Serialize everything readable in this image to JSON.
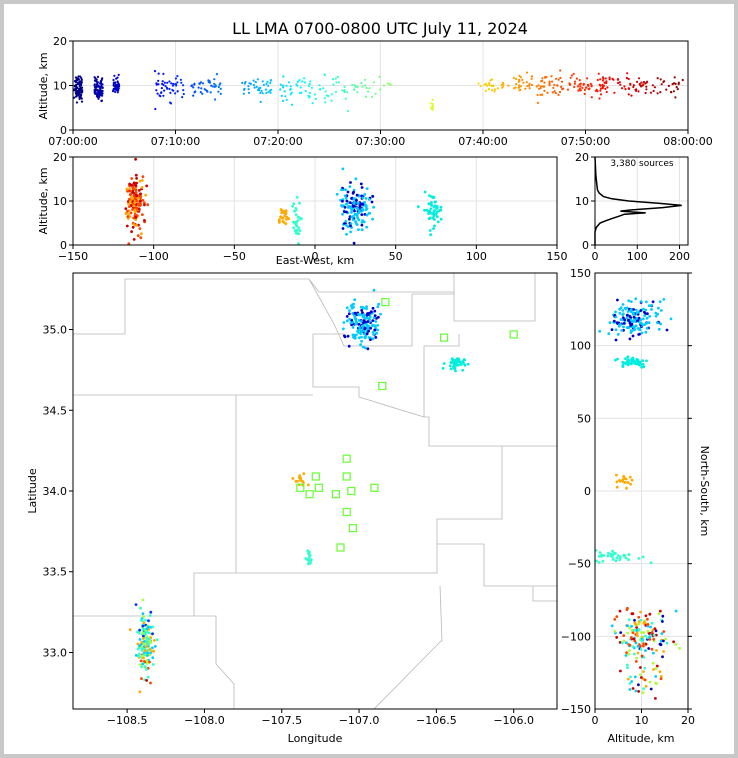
{
  "chart_data": [
    {
      "type": "scatter",
      "panel": "altitude-time",
      "title": "LL LMA 0700-0800 UTC July 11, 2024",
      "xlabel": "",
      "ylabel": "Altitude, km",
      "xlim": [
        "07:00:00",
        "08:00:00"
      ],
      "ylim": [
        0,
        20
      ],
      "xticks": [
        "07:00:00",
        "07:10:00",
        "07:20:00",
        "07:30:00",
        "07:40:00",
        "07:50:00",
        "08:00:00"
      ],
      "yticks": [
        "0",
        "10",
        "20"
      ],
      "colormap": "jet",
      "groups": [
        {
          "time_min": 0.5,
          "alt_km": 9.5,
          "spread": 2.5,
          "n": 90,
          "dt": 0.4
        },
        {
          "time_min": 2.5,
          "alt_km": 9.3,
          "spread": 2.2,
          "n": 90,
          "dt": 0.4
        },
        {
          "time_min": 4.2,
          "alt_km": 10.0,
          "spread": 1.5,
          "n": 50,
          "dt": 0.3
        },
        {
          "time_min": 9.5,
          "alt_km": 9.5,
          "spread": 2.5,
          "n": 50,
          "dt": 1.5
        },
        {
          "time_min": 13.0,
          "alt_km": 9.5,
          "spread": 2.0,
          "n": 40,
          "dt": 1.5
        },
        {
          "time_min": 18.0,
          "alt_km": 9.5,
          "spread": 2.0,
          "n": 40,
          "dt": 1.5
        },
        {
          "time_min": 22.0,
          "alt_km": 9.0,
          "spread": 2.5,
          "n": 40,
          "dt": 1.8
        },
        {
          "time_min": 25.5,
          "alt_km": 8.5,
          "spread": 3.0,
          "n": 30,
          "dt": 1.5
        },
        {
          "time_min": 29.0,
          "alt_km": 9.5,
          "spread": 2.0,
          "n": 25,
          "dt": 2.0
        },
        {
          "time_min": 35.0,
          "alt_km": 5.5,
          "spread": 1.2,
          "n": 10,
          "dt": 0.2
        },
        {
          "time_min": 41.0,
          "alt_km": 10.0,
          "spread": 2.0,
          "n": 25,
          "dt": 1.5
        },
        {
          "time_min": 45.0,
          "alt_km": 10.0,
          "spread": 2.5,
          "n": 60,
          "dt": 2.0
        },
        {
          "time_min": 49.5,
          "alt_km": 10.0,
          "spread": 2.0,
          "n": 70,
          "dt": 2.5
        },
        {
          "time_min": 54.0,
          "alt_km": 10.0,
          "spread": 2.0,
          "n": 55,
          "dt": 2.5
        },
        {
          "time_min": 58.0,
          "alt_km": 10.0,
          "spread": 2.0,
          "n": 25,
          "dt": 1.5
        }
      ]
    },
    {
      "type": "scatter",
      "panel": "altitude-east-west",
      "xlabel": "East-West, km",
      "ylabel": "Altitude, km",
      "xlim": [
        -150,
        150
      ],
      "ylim": [
        0,
        20
      ],
      "xticks": [
        "−150",
        "−100",
        "−50",
        "0",
        "50",
        "100",
        "150"
      ],
      "yticks": [
        "0",
        "10",
        "20"
      ],
      "clusters": [
        {
          "x_km": -112,
          "alt_km": 10.0,
          "sx": 3,
          "salt": 3.0,
          "n": 160,
          "color": "#dd2200"
        },
        {
          "x_km": -20,
          "alt_km": 6.5,
          "sx": 2,
          "salt": 1.2,
          "n": 25,
          "color": "#ffaa00"
        },
        {
          "x_km": -12,
          "alt_km": 5.0,
          "sx": 1.5,
          "salt": 2.5,
          "n": 30,
          "color": "#33ffcc"
        },
        {
          "x_km": 25,
          "alt_km": 8.5,
          "sx": 5,
          "salt": 2.5,
          "n": 160,
          "color": "#00ccff"
        },
        {
          "x_km": 73,
          "alt_km": 8.0,
          "sx": 3,
          "salt": 1.8,
          "n": 50,
          "color": "#00eedd"
        }
      ]
    },
    {
      "type": "line",
      "panel": "altitude-histogram",
      "annotation": "3,380 sources",
      "xlim": [
        0,
        220
      ],
      "ylim": [
        0,
        20
      ],
      "xticks": [
        "0",
        "100",
        "200"
      ],
      "yticks": [
        "0",
        "10",
        "20"
      ],
      "points": [
        [
          0,
          0
        ],
        [
          0,
          3
        ],
        [
          3,
          4
        ],
        [
          12,
          5
        ],
        [
          25,
          5.5
        ],
        [
          40,
          6
        ],
        [
          55,
          6.5
        ],
        [
          70,
          7
        ],
        [
          120,
          7.3
        ],
        [
          60,
          7.7
        ],
        [
          90,
          8
        ],
        [
          160,
          8.5
        ],
        [
          205,
          9
        ],
        [
          150,
          9.5
        ],
        [
          80,
          10
        ],
        [
          40,
          10.5
        ],
        [
          20,
          11
        ],
        [
          10,
          11.8
        ],
        [
          6,
          12.5
        ],
        [
          4,
          14
        ],
        [
          2,
          16
        ],
        [
          1,
          18
        ],
        [
          0,
          20
        ]
      ]
    },
    {
      "type": "scatter",
      "panel": "plan-view",
      "xlabel": "Longitude",
      "ylabel": "Latitude",
      "xlim": [
        -108.85,
        -105.72
      ],
      "ylim": [
        32.65,
        35.35
      ],
      "xticks": [
        "−108.5",
        "−108.0",
        "−107.5",
        "−107.0",
        "−106.5",
        "−106.0"
      ],
      "yticks": [
        "33.0",
        "33.5",
        "34.0",
        "34.5",
        "35.0"
      ],
      "clusters": [
        {
          "lon": -108.38,
          "lat": 33.05,
          "sx": 0.03,
          "sy": 0.1,
          "n": 150,
          "color": "#dd2200"
        },
        {
          "lon": -107.38,
          "lat": 34.06,
          "sx": 0.02,
          "sy": 0.02,
          "n": 15,
          "color": "#ffaa00"
        },
        {
          "lon": -107.32,
          "lat": 33.58,
          "sx": 0.01,
          "sy": 0.03,
          "n": 20,
          "color": "#33ffcc"
        },
        {
          "lon": -106.97,
          "lat": 35.04,
          "sx": 0.05,
          "sy": 0.06,
          "n": 170,
          "color": "#00ccff"
        },
        {
          "lon": -106.38,
          "lat": 34.79,
          "sx": 0.03,
          "sy": 0.02,
          "n": 40,
          "color": "#00eedd"
        }
      ],
      "stations": [
        [
          -106.83,
          35.17
        ],
        [
          -106.45,
          34.95
        ],
        [
          -106.0,
          34.97
        ],
        [
          -106.85,
          34.65
        ],
        [
          -107.08,
          34.2
        ],
        [
          -107.08,
          34.09
        ],
        [
          -107.28,
          34.09
        ],
        [
          -107.26,
          34.02
        ],
        [
          -107.05,
          34.0
        ],
        [
          -106.9,
          34.02
        ],
        [
          -107.15,
          33.98
        ],
        [
          -107.32,
          33.98
        ],
        [
          -107.38,
          34.02
        ],
        [
          -107.08,
          33.87
        ],
        [
          -107.04,
          33.77
        ],
        [
          -107.12,
          33.65
        ]
      ]
    },
    {
      "type": "scatter",
      "panel": "north-south-altitude",
      "xlabel": "Altitude, km",
      "ylabel": "North-South, km",
      "xlim": [
        0,
        20
      ],
      "ylim": [
        -150,
        150
      ],
      "xticks": [
        "0",
        "10",
        "20"
      ],
      "yticks": [
        "−150",
        "−100",
        "−50",
        "0",
        "50",
        "100",
        "150"
      ],
      "clusters": [
        {
          "alt_km": 8.5,
          "y_km": 118,
          "salt": 2.5,
          "sy": 7,
          "n": 160,
          "color": "#00ccff"
        },
        {
          "alt_km": 8.0,
          "y_km": 89,
          "salt": 1.8,
          "sy": 2,
          "n": 50,
          "color": "#00eedd"
        },
        {
          "alt_km": 6.5,
          "y_km": 7,
          "salt": 1.0,
          "sy": 2,
          "n": 20,
          "color": "#ffaa00"
        },
        {
          "alt_km": 5.0,
          "y_km": -45,
          "salt": 2.5,
          "sy": 2,
          "n": 35,
          "color": "#33ffcc"
        },
        {
          "alt_km": 10.0,
          "y_km": -100,
          "salt": 3.0,
          "sy": 10,
          "n": 150,
          "color": "#dd2200"
        },
        {
          "alt_km": 10.5,
          "y_km": -130,
          "salt": 2.0,
          "sy": 8,
          "n": 30,
          "color": "#dd2200"
        }
      ]
    }
  ]
}
